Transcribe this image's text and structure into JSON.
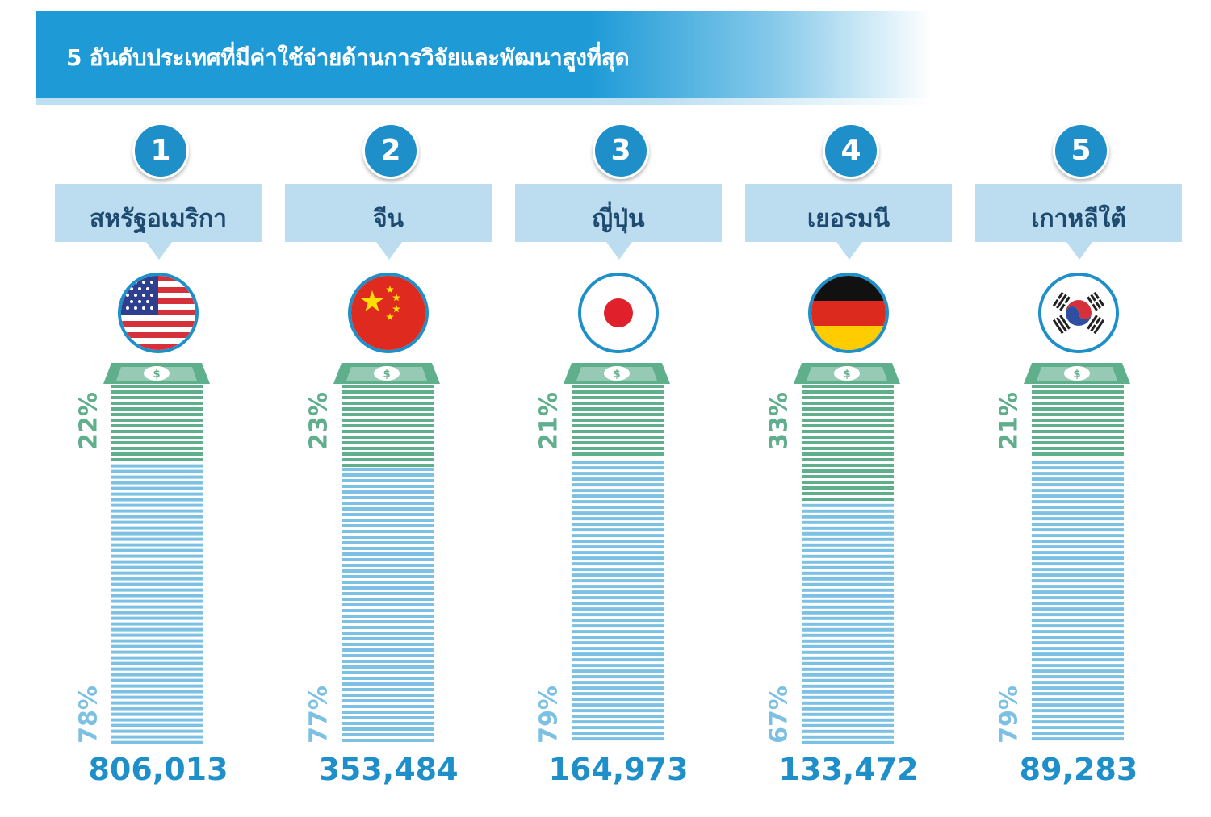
{
  "header": {
    "title": "5 อันดับประเทศที่มีค่าใช้จ่ายด้านการวิจัยและพัฒนาสูงที่สุด"
  },
  "colors": {
    "accent": "#1e8fc9",
    "banner": "#1e9bd7",
    "name_box": "#bcdcf0",
    "segment_top": "#5fae8c",
    "segment_bottom": "#7cc1e3"
  },
  "chart_data": {
    "type": "bar",
    "title": "5 อันดับประเทศที่มีค่าใช้จ่ายด้านการวิจัยและพัฒนาสูงที่สุด",
    "categories": [
      "สหรัฐอเมริกา",
      "จีน",
      "ญี่ปุ่น",
      "เยอรมนี",
      "เกาหลีใต้"
    ],
    "ranks": [
      "1",
      "2",
      "3",
      "4",
      "5"
    ],
    "totals": [
      806013,
      353484,
      164973,
      133472,
      89283
    ],
    "total_labels": [
      "806,013",
      "353,484",
      "164,973",
      "133,472",
      "89,283"
    ],
    "series": [
      {
        "values": [
          22,
          23,
          21,
          33,
          21
        ],
        "labels": [
          "22%",
          "23%",
          "21%",
          "33%",
          "21%"
        ],
        "color": "#5fae8c"
      },
      {
        "values": [
          78,
          77,
          79,
          67,
          79
        ],
        "labels": [
          "78%",
          "77%",
          "79%",
          "67%",
          "79%"
        ],
        "color": "#7cc1e3"
      }
    ],
    "flags": [
      "usa-flag-icon",
      "china-flag-icon",
      "japan-flag-icon",
      "germany-flag-icon",
      "korea-flag-icon"
    ]
  }
}
